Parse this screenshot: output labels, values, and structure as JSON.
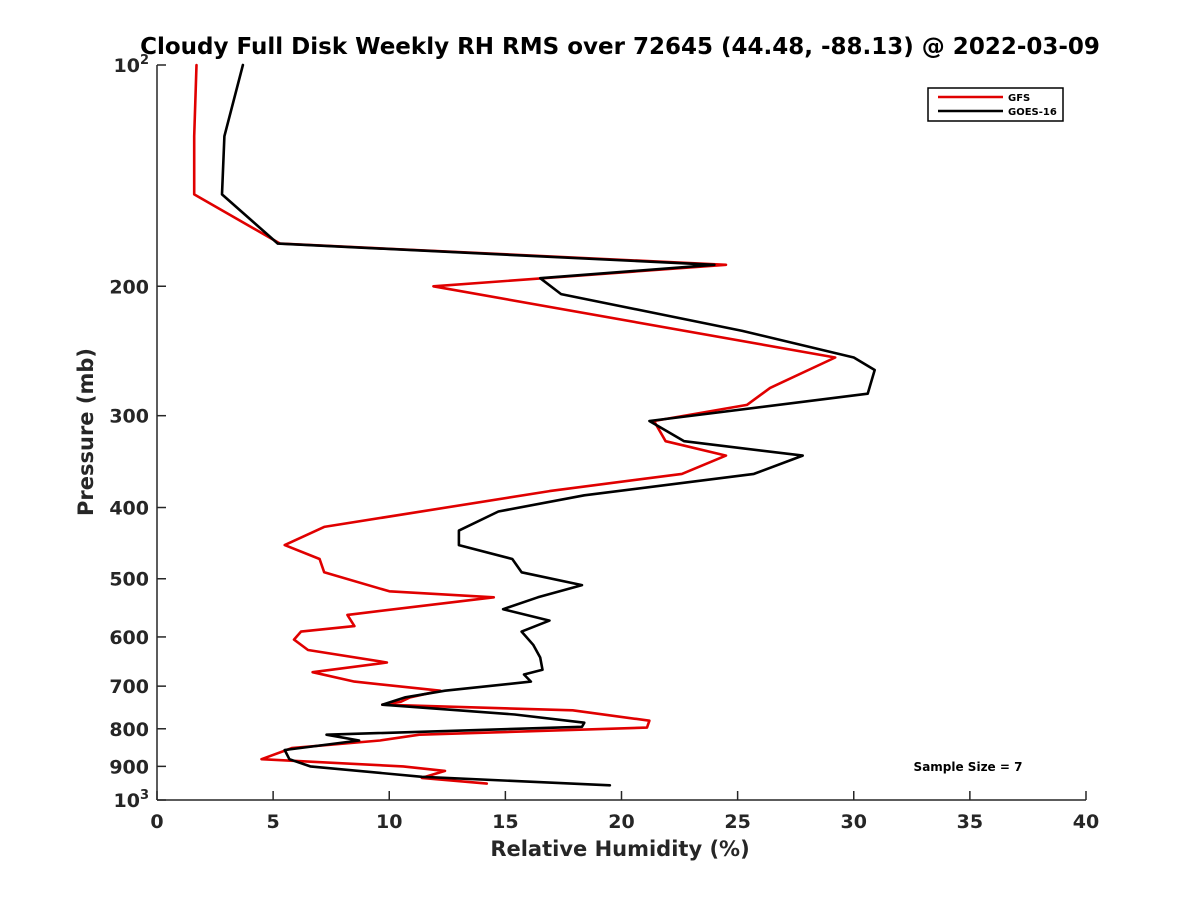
{
  "chart_data": {
    "type": "line",
    "title": "Cloudy Full Disk Weekly RH RMS over 72645 (44.48, -88.13) @ 2022-03-09",
    "xlabel": "Relative Humidity (%)",
    "ylabel": "Pressure (mb)",
    "xlim": [
      0,
      40
    ],
    "ylim": [
      100,
      1000
    ],
    "y_scale": "log",
    "y_reversed": true,
    "x_ticks": [
      0,
      5,
      10,
      15,
      20,
      25,
      30,
      35,
      40
    ],
    "y_ticks": [
      {
        "value": 100,
        "label": "10",
        "exp": "2"
      },
      {
        "value": 200,
        "label": "200"
      },
      {
        "value": 300,
        "label": "300"
      },
      {
        "value": 400,
        "label": "400"
      },
      {
        "value": 500,
        "label": "500"
      },
      {
        "value": 600,
        "label": "600"
      },
      {
        "value": 700,
        "label": "700"
      },
      {
        "value": 800,
        "label": "800"
      },
      {
        "value": 900,
        "label": "900"
      },
      {
        "value": 1000,
        "label": "10",
        "exp": "3"
      }
    ],
    "grid": false,
    "legend_position": "top-right",
    "annotation": "Sample Size = 7",
    "series": [
      {
        "name": "GFS",
        "color": "#e00000",
        "points": [
          [
            1.7,
            100
          ],
          [
            1.6,
            125
          ],
          [
            1.6,
            150
          ],
          [
            5.3,
            175
          ],
          [
            24.5,
            187
          ],
          [
            11.9,
            200
          ],
          [
            29.2,
            250
          ],
          [
            26.4,
            275
          ],
          [
            25.4,
            290
          ],
          [
            21.4,
            305
          ],
          [
            21.9,
            325
          ],
          [
            24.5,
            340
          ],
          [
            22.6,
            360
          ],
          [
            16.9,
            380
          ],
          [
            7.2,
            425
          ],
          [
            5.5,
            450
          ],
          [
            7.0,
            470
          ],
          [
            7.2,
            490
          ],
          [
            10.0,
            520
          ],
          [
            14.5,
            530
          ],
          [
            8.2,
            560
          ],
          [
            8.5,
            580
          ],
          [
            6.2,
            590
          ],
          [
            5.9,
            605
          ],
          [
            6.5,
            625
          ],
          [
            9.9,
            650
          ],
          [
            6.7,
            670
          ],
          [
            8.5,
            690
          ],
          [
            12.2,
            710
          ],
          [
            10.9,
            725
          ],
          [
            10.5,
            735
          ],
          [
            9.7,
            742
          ],
          [
            17.9,
            755
          ],
          [
            21.2,
            780
          ],
          [
            21.1,
            797
          ],
          [
            11.3,
            815
          ],
          [
            9.6,
            830
          ],
          [
            5.8,
            850
          ],
          [
            4.5,
            880
          ],
          [
            10.6,
            900
          ],
          [
            12.4,
            913
          ],
          [
            11.4,
            933
          ],
          [
            14.2,
            950
          ]
        ]
      },
      {
        "name": "GOES-16",
        "color": "#000000",
        "points": [
          [
            3.7,
            100
          ],
          [
            2.9,
            125
          ],
          [
            2.8,
            150
          ],
          [
            5.2,
            175
          ],
          [
            24.0,
            187
          ],
          [
            16.5,
            195
          ],
          [
            17.4,
            205
          ],
          [
            25.2,
            230
          ],
          [
            30.0,
            250
          ],
          [
            30.9,
            260
          ],
          [
            30.6,
            280
          ],
          [
            21.2,
            305
          ],
          [
            22.7,
            325
          ],
          [
            27.8,
            340
          ],
          [
            25.7,
            360
          ],
          [
            18.4,
            385
          ],
          [
            14.7,
            405
          ],
          [
            13.0,
            430
          ],
          [
            13.0,
            450
          ],
          [
            15.3,
            470
          ],
          [
            15.7,
            490
          ],
          [
            18.3,
            510
          ],
          [
            16.4,
            530
          ],
          [
            14.9,
            550
          ],
          [
            16.9,
            570
          ],
          [
            15.7,
            590
          ],
          [
            16.2,
            615
          ],
          [
            16.5,
            640
          ],
          [
            16.6,
            665
          ],
          [
            15.8,
            675
          ],
          [
            16.1,
            690
          ],
          [
            12.4,
            710
          ],
          [
            10.7,
            725
          ],
          [
            9.7,
            742
          ],
          [
            15.4,
            765
          ],
          [
            18.4,
            785
          ],
          [
            18.3,
            795
          ],
          [
            7.3,
            815
          ],
          [
            8.7,
            830
          ],
          [
            5.5,
            855
          ],
          [
            5.7,
            880
          ],
          [
            6.6,
            900
          ],
          [
            11.4,
            930
          ],
          [
            19.5,
            955
          ]
        ]
      }
    ]
  }
}
